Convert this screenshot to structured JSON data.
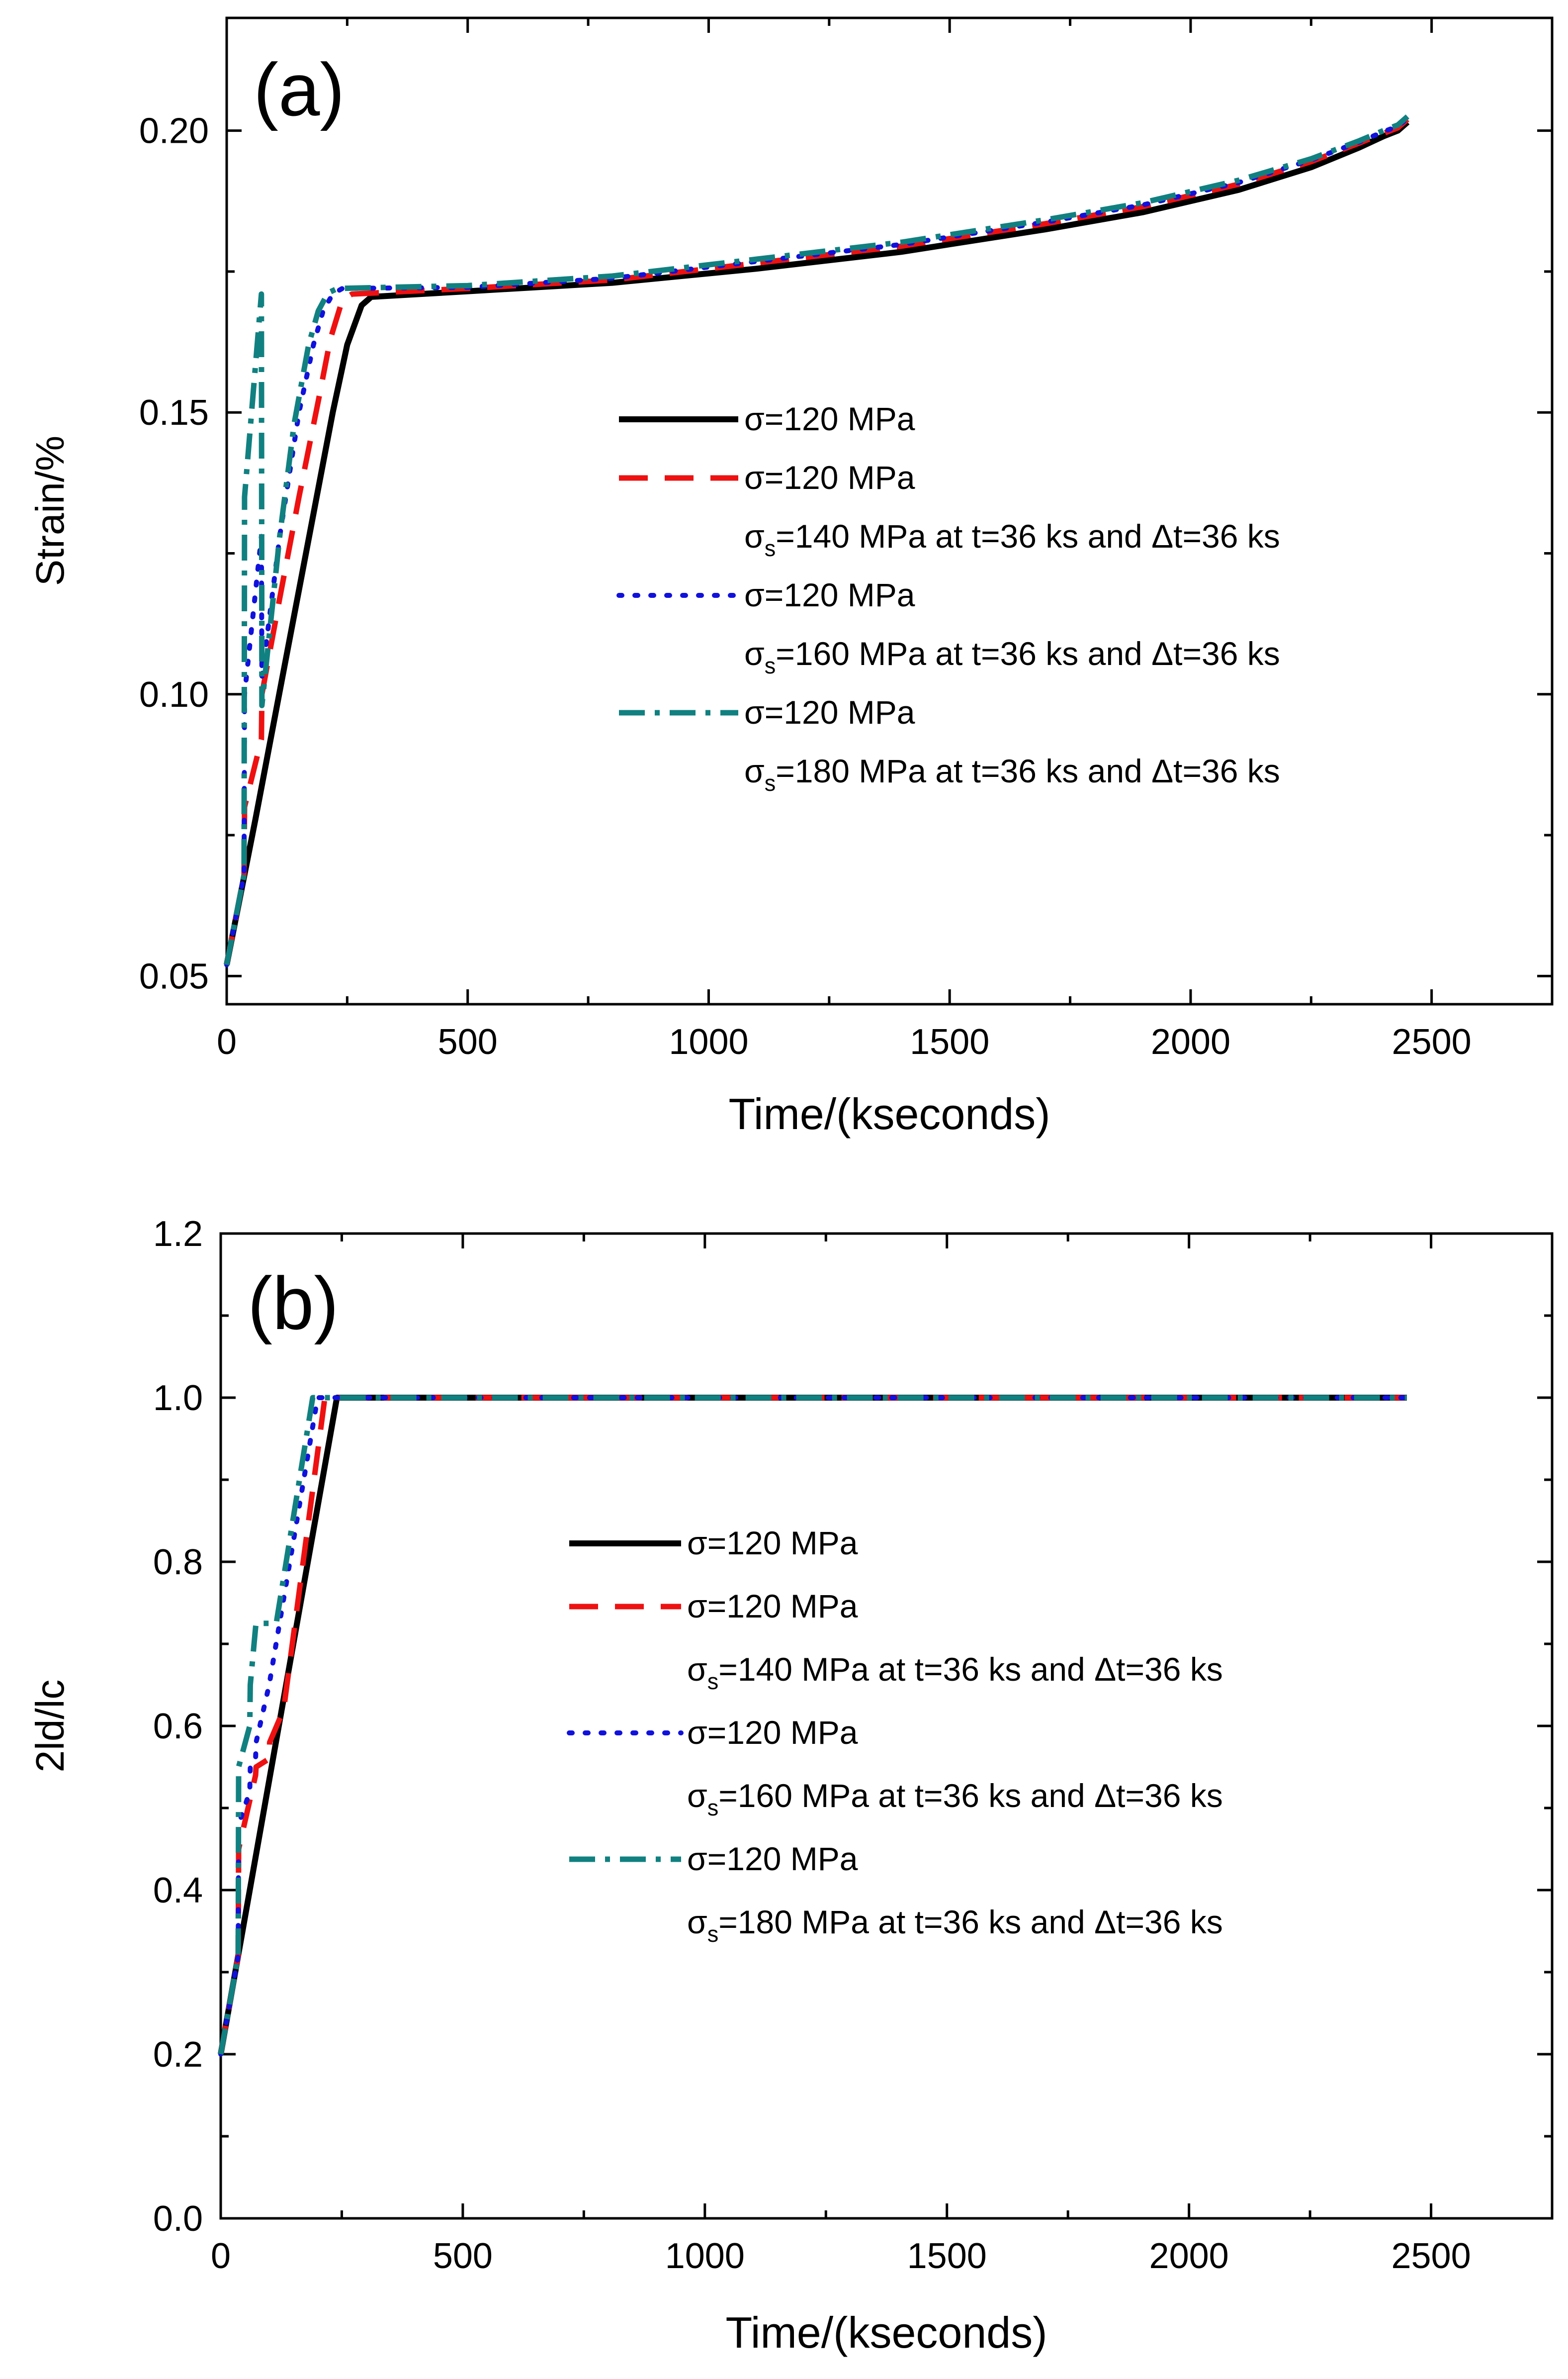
{
  "chart_data": [
    {
      "type": "line",
      "panel_label": "(a)",
      "xlabel": "Time/(kseconds)",
      "ylabel": "Strain/%",
      "xlim": [
        0,
        2750
      ],
      "ylim": [
        0.045,
        0.22
      ],
      "xticks": [
        0,
        500,
        1000,
        1500,
        2000,
        2500
      ],
      "xtick_labels": [
        "0",
        "500",
        "1000",
        "1500",
        "2000",
        "2500"
      ],
      "yticks": [
        0.05,
        0.1,
        0.15,
        0.2
      ],
      "ytick_labels": [
        "0.05",
        "0.10",
        "0.15",
        "0.20"
      ],
      "grid": false,
      "legend_position": "center",
      "series": [
        {
          "name": "σ=120 MPa",
          "legend_lines": [
            "σ=120 MPa"
          ],
          "color": "#000000",
          "dash": "solid",
          "x": [
            0,
            60,
            120,
            180,
            220,
            250,
            280,
            300,
            500,
            800,
            1100,
            1400,
            1700,
            1900,
            2100,
            2250,
            2350,
            2400,
            2430,
            2450
          ],
          "y": [
            0.052,
            0.078,
            0.105,
            0.132,
            0.15,
            0.162,
            0.169,
            0.1705,
            0.1715,
            0.173,
            0.1755,
            0.1785,
            0.1825,
            0.1855,
            0.1895,
            0.1935,
            0.197,
            0.199,
            0.2,
            0.2015
          ]
        },
        {
          "name": "σ=120 MPa, σs=140 MPa at t=36 ks and Δt=36 ks",
          "legend_lines": [
            "σ=120 MPa",
            "σs=140 MPa at t=36 ks and Δt=36 ks"
          ],
          "color": "#ee1111",
          "dash": "long-dash",
          "x": [
            0,
            36,
            37,
            72,
            73,
            110,
            150,
            190,
            215,
            240,
            260,
            500,
            800,
            1100,
            1400,
            1700,
            1900,
            2100,
            2250,
            2350,
            2400,
            2430,
            2450
          ],
          "y": [
            0.052,
            0.068,
            0.08,
            0.092,
            0.1,
            0.117,
            0.135,
            0.152,
            0.163,
            0.17,
            0.171,
            0.172,
            0.1735,
            0.1765,
            0.1795,
            0.1835,
            0.1865,
            0.1905,
            0.1945,
            0.1978,
            0.1995,
            0.2005,
            0.202
          ]
        },
        {
          "name": "σ=120 MPa, σs=160 MPa at t=36 ks and Δt=36 ks",
          "legend_lines": [
            "σ=120 MPa",
            "σs=160 MPa at t=36 ks and Δt=36 ks"
          ],
          "color": "#1111dd",
          "dash": "dot",
          "x": [
            0,
            36,
            37,
            72,
            73,
            110,
            150,
            180,
            200,
            220,
            240,
            500,
            800,
            1100,
            1400,
            1700,
            1900,
            2100,
            2250,
            2350,
            2400,
            2430,
            2450
          ],
          "y": [
            0.052,
            0.068,
            0.1,
            0.128,
            0.103,
            0.128,
            0.15,
            0.162,
            0.168,
            0.171,
            0.172,
            0.1722,
            0.1738,
            0.1768,
            0.1798,
            0.1838,
            0.1868,
            0.1908,
            0.1948,
            0.198,
            0.1998,
            0.2008,
            0.2022
          ]
        },
        {
          "name": "σ=120 MPa, σs=180 MPa at t=36 ks and Δt=36 ks",
          "legend_lines": [
            "σ=120 MPa",
            "σs=180 MPa at t=36 ks and Δt=36 ks"
          ],
          "color": "#118080",
          "dash": "dash-dot",
          "x": [
            0,
            36,
            37,
            72,
            73,
            110,
            140,
            170,
            190,
            210,
            230,
            500,
            800,
            1100,
            1400,
            1700,
            1900,
            2100,
            2250,
            2350,
            2400,
            2430,
            2450
          ],
          "y": [
            0.052,
            0.068,
            0.135,
            0.171,
            0.098,
            0.128,
            0.148,
            0.162,
            0.168,
            0.1712,
            0.172,
            0.1725,
            0.1742,
            0.1772,
            0.1802,
            0.1842,
            0.1872,
            0.1912,
            0.195,
            0.1982,
            0.2,
            0.201,
            0.2025
          ]
        }
      ]
    },
    {
      "type": "line",
      "panel_label": "(b)",
      "xlabel": "Time/(kseconds)",
      "ylabel": "2ld/lc",
      "xlim": [
        0,
        2750
      ],
      "ylim": [
        0,
        1.2
      ],
      "xticks": [
        0,
        500,
        1000,
        1500,
        2000,
        2500
      ],
      "xtick_labels": [
        "0",
        "500",
        "1000",
        "1500",
        "2000",
        "2500"
      ],
      "yticks": [
        0.0,
        0.2,
        0.4,
        0.6,
        0.8,
        1.0,
        1.2
      ],
      "ytick_labels": [
        "0.0",
        "0.2",
        "0.4",
        "0.6",
        "0.8",
        "1.0",
        "1.2"
      ],
      "grid": false,
      "legend_position": "center",
      "series": [
        {
          "name": "σ=120 MPa",
          "legend_lines": [
            "σ=120 MPa"
          ],
          "color": "#000000",
          "dash": "solid",
          "x": [
            0,
            240,
            2450
          ],
          "y": [
            0.2,
            1.0,
            1.0
          ]
        },
        {
          "name": "σ=120 MPa, σs=140 MPa at t=36 ks and Δt=36 ks",
          "legend_lines": [
            "σ=120 MPa",
            "σs=140 MPa at t=36 ks and Δt=36 ks"
          ],
          "color": "#ee1111",
          "dash": "long-dash",
          "x": [
            0,
            36,
            37,
            72,
            73,
            100,
            101,
            130,
            215,
            2450
          ],
          "y": [
            0.2,
            0.32,
            0.45,
            0.54,
            0.55,
            0.56,
            0.58,
            0.62,
            1.0,
            1.0
          ]
        },
        {
          "name": "σ=120 MPa, σs=160 MPa at t=36 ks and Δt=36 ks",
          "legend_lines": [
            "σ=120 MPa",
            "σs=160 MPa at t=36 ks and Δt=36 ks"
          ],
          "color": "#1111dd",
          "dash": "dot",
          "x": [
            0,
            36,
            37,
            60,
            61,
            72,
            73,
            100,
            200,
            2450
          ],
          "y": [
            0.2,
            0.32,
            0.48,
            0.52,
            0.55,
            0.56,
            0.58,
            0.65,
            1.0,
            1.0
          ]
        },
        {
          "name": "σ=120 MPa, σs=180 MPa at t=36 ks and Δt=36 ks",
          "legend_lines": [
            "σ=120 MPa",
            "σs=180 MPa at t=36 ks and Δt=36 ks"
          ],
          "color": "#118080",
          "dash": "dash-dot",
          "x": [
            0,
            36,
            37,
            60,
            61,
            72,
            73,
            115,
            116,
            190,
            2450
          ],
          "y": [
            0.2,
            0.32,
            0.55,
            0.6,
            0.65,
            0.72,
            0.725,
            0.725,
            0.73,
            1.0,
            1.0
          ]
        }
      ]
    }
  ]
}
